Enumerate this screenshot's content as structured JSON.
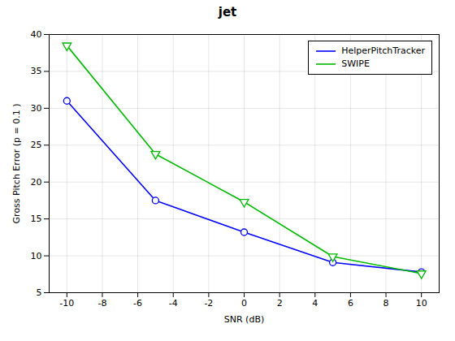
{
  "chart_data": {
    "type": "line",
    "title": "jet",
    "xlabel": "SNR (dB)",
    "ylabel": "Gross Pitch Error (p = 0.1 )",
    "x": [
      -10,
      -5,
      0,
      5,
      10
    ],
    "series": [
      {
        "name": "HelperPitchTracker",
        "color": "#0000FF",
        "marker": "circle",
        "values": [
          31.0,
          17.5,
          13.2,
          9.1,
          7.8
        ]
      },
      {
        "name": "SWIPE",
        "color": "#00BB00",
        "marker": "triangle-down",
        "values": [
          38.5,
          23.8,
          17.3,
          9.9,
          7.6
        ]
      }
    ],
    "xlim": [
      -11,
      11
    ],
    "ylim": [
      5,
      40
    ],
    "xticks": [
      -10,
      -8,
      -6,
      -4,
      -2,
      0,
      2,
      4,
      6,
      8,
      10
    ],
    "yticks": [
      5,
      10,
      15,
      20,
      25,
      30,
      35,
      40
    ],
    "grid": true,
    "legend": "upper right"
  }
}
